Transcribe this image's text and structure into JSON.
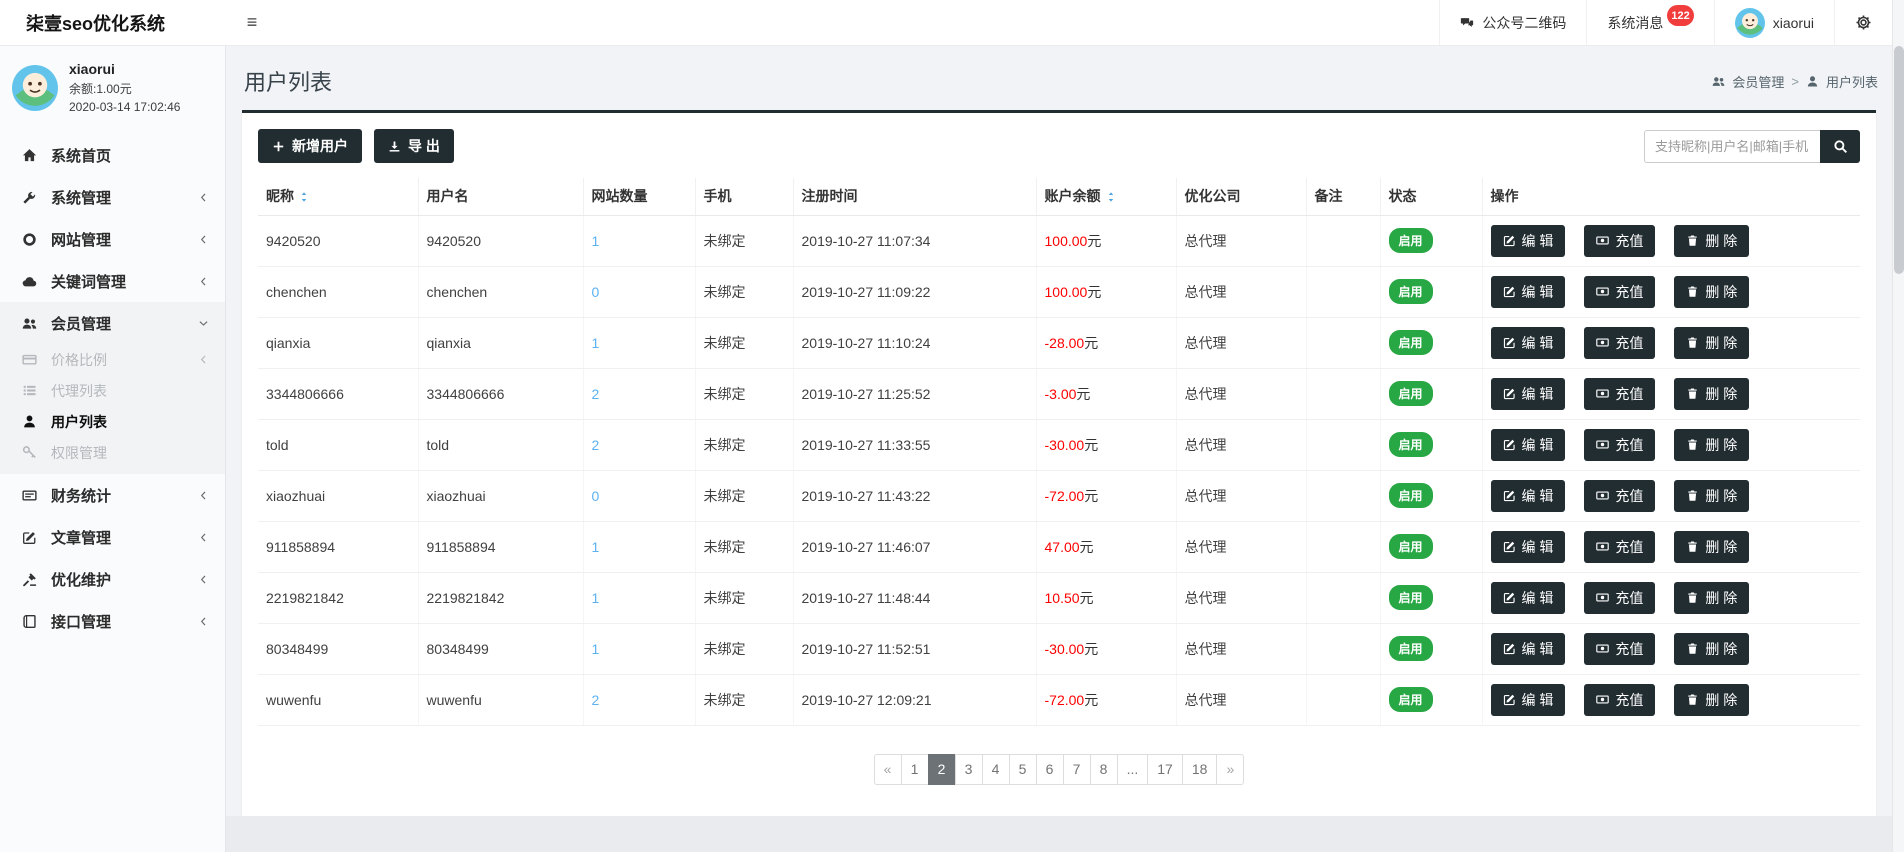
{
  "colors": {
    "accent": "#222d32",
    "success": "#28a745",
    "danger": "#ff0000",
    "link": "#5db2f2",
    "badge": "#f23d3d",
    "page_active": "#6d7277"
  },
  "navbar": {
    "brand": "柒壹seo优化系统",
    "qrcode_label": "公众号二维码",
    "messages_label": "系统消息",
    "messages_count": "122",
    "username": "xiaorui"
  },
  "sidebar": {
    "user": {
      "name": "xiaorui",
      "balance": "余额:1.00元",
      "datetime": "2020-03-14 17:02:46"
    },
    "items": [
      {
        "id": "home",
        "icon": "home",
        "label": "系统首页"
      },
      {
        "id": "system",
        "icon": "wrench",
        "label": "系统管理",
        "chevron": "left"
      },
      {
        "id": "website",
        "icon": "globe",
        "label": "网站管理",
        "chevron": "left"
      },
      {
        "id": "keyword",
        "icon": "cloud",
        "label": "关键词管理",
        "chevron": "left"
      },
      {
        "id": "member",
        "icon": "users",
        "label": "会员管理",
        "chevron": "down",
        "expanded": true,
        "children": [
          {
            "id": "price-ratio",
            "icon": "credit-card",
            "label": "价格比例",
            "chevron": "left",
            "muted": true
          },
          {
            "id": "agent-list",
            "icon": "list",
            "label": "代理列表",
            "muted": true
          },
          {
            "id": "user-list",
            "icon": "user",
            "label": "用户列表",
            "active": true
          },
          {
            "id": "permission",
            "icon": "key",
            "label": "权限管理",
            "muted": true
          }
        ]
      },
      {
        "id": "finance",
        "icon": "newspaper",
        "label": "财务统计",
        "chevron": "left"
      },
      {
        "id": "article",
        "icon": "edit",
        "label": "文章管理",
        "chevron": "left"
      },
      {
        "id": "optimize",
        "icon": "gavel",
        "label": "优化维护",
        "chevron": "left"
      },
      {
        "id": "api",
        "icon": "book",
        "label": "接口管理",
        "chevron": "left"
      }
    ]
  },
  "page": {
    "title": "用户列表",
    "breadcrumb": [
      {
        "icon": "users",
        "label": "会员管理"
      },
      {
        "icon": "user",
        "label": "用户列表"
      }
    ],
    "breadcrumb_separator": ">"
  },
  "toolbar": {
    "add_label": "新增用户",
    "export_label": "导 出",
    "search_placeholder": "支持昵称|用户名|邮箱|手机"
  },
  "table": {
    "headers": [
      {
        "id": "nickname",
        "label": "昵称",
        "sortable": true
      },
      {
        "id": "username",
        "label": "用户名"
      },
      {
        "id": "sites",
        "label": "网站数量"
      },
      {
        "id": "phone",
        "label": "手机"
      },
      {
        "id": "registered",
        "label": "注册时间"
      },
      {
        "id": "balance",
        "label": "账户余额",
        "sortable": true
      },
      {
        "id": "company",
        "label": "优化公司"
      },
      {
        "id": "remark",
        "label": "备注"
      },
      {
        "id": "status",
        "label": "状态"
      },
      {
        "id": "actions",
        "label": "操作"
      }
    ],
    "balance_suffix": "元",
    "actions": [
      {
        "id": "edit",
        "icon": "edit",
        "label": "编 辑"
      },
      {
        "id": "recharge",
        "icon": "money",
        "label": "充值"
      },
      {
        "id": "delete",
        "icon": "trash",
        "label": "删 除"
      }
    ],
    "rows": [
      {
        "nickname": "9420520",
        "username": "9420520",
        "sites": "1",
        "phone": "未绑定",
        "registered": "2019-10-27 11:07:34",
        "balance": "100.00",
        "company": "总代理",
        "remark": "",
        "status": "启用"
      },
      {
        "nickname": "chenchen",
        "username": "chenchen",
        "sites": "0",
        "phone": "未绑定",
        "registered": "2019-10-27 11:09:22",
        "balance": "100.00",
        "company": "总代理",
        "remark": "",
        "status": "启用"
      },
      {
        "nickname": "qianxia",
        "username": "qianxia",
        "sites": "1",
        "phone": "未绑定",
        "registered": "2019-10-27 11:10:24",
        "balance": "-28.00",
        "company": "总代理",
        "remark": "",
        "status": "启用"
      },
      {
        "nickname": "3344806666",
        "username": "3344806666",
        "sites": "2",
        "phone": "未绑定",
        "registered": "2019-10-27 11:25:52",
        "balance": "-3.00",
        "company": "总代理",
        "remark": "",
        "status": "启用"
      },
      {
        "nickname": "told",
        "username": "told",
        "sites": "2",
        "phone": "未绑定",
        "registered": "2019-10-27 11:33:55",
        "balance": "-30.00",
        "company": "总代理",
        "remark": "",
        "status": "启用"
      },
      {
        "nickname": "xiaozhuai",
        "username": "xiaozhuai",
        "sites": "0",
        "phone": "未绑定",
        "registered": "2019-10-27 11:43:22",
        "balance": "-72.00",
        "company": "总代理",
        "remark": "",
        "status": "启用"
      },
      {
        "nickname": "911858894",
        "username": "911858894",
        "sites": "1",
        "phone": "未绑定",
        "registered": "2019-10-27 11:46:07",
        "balance": "47.00",
        "company": "总代理",
        "remark": "",
        "status": "启用"
      },
      {
        "nickname": "2219821842",
        "username": "2219821842",
        "sites": "1",
        "phone": "未绑定",
        "registered": "2019-10-27 11:48:44",
        "balance": "10.50",
        "company": "总代理",
        "remark": "",
        "status": "启用"
      },
      {
        "nickname": "80348499",
        "username": "80348499",
        "sites": "1",
        "phone": "未绑定",
        "registered": "2019-10-27 11:52:51",
        "balance": "-30.00",
        "company": "总代理",
        "remark": "",
        "status": "启用"
      },
      {
        "nickname": "wuwenfu",
        "username": "wuwenfu",
        "sites": "2",
        "phone": "未绑定",
        "registered": "2019-10-27 12:09:21",
        "balance": "-72.00",
        "company": "总代理",
        "remark": "",
        "status": "启用"
      }
    ]
  },
  "pagination": {
    "items": [
      "«",
      "1",
      "2",
      "3",
      "4",
      "5",
      "6",
      "7",
      "8",
      "...",
      "17",
      "18",
      "»"
    ],
    "active": "2"
  }
}
